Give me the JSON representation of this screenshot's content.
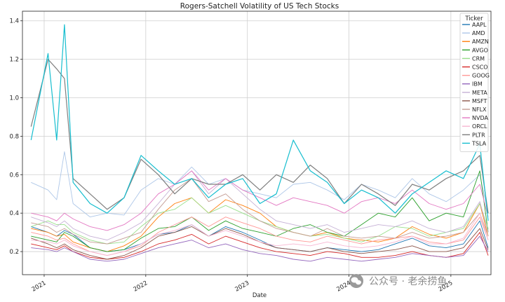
{
  "watermark": {
    "text": "公众号 · 老余捞鱼",
    "icon": "wechat-icon"
  },
  "chart_data": {
    "type": "line",
    "title": "Rogers-Satchell Volatility of US Tech Stocks",
    "xlabel": "Date",
    "ylabel": "",
    "x_range": [
      "2020-10-15",
      "2025-05-25"
    ],
    "ylim": [
      0.08,
      1.45
    ],
    "yticks": [
      0.2,
      0.4,
      0.6,
      0.8,
      1.0,
      1.2,
      1.4
    ],
    "ytick_labels": [
      "0.2",
      "0.4",
      "0.6",
      "0.8",
      "1.0",
      "1.2",
      "1.4"
    ],
    "xticks": [
      "2021-01-01",
      "2022-01-01",
      "2023-01-01",
      "2024-01-01",
      "2025-01-01"
    ],
    "xtick_labels": [
      "2021",
      "2022",
      "2023",
      "2024",
      "2025"
    ],
    "grid": true,
    "legend": {
      "title": "Ticker",
      "placement": "top-right"
    },
    "x": [
      "2020-11",
      "2021-01",
      "2021-02",
      "2021-03",
      "2021-04",
      "2021-06",
      "2021-08",
      "2021-10",
      "2021-12",
      "2022-02",
      "2022-04",
      "2022-06",
      "2022-08",
      "2022-10",
      "2022-12",
      "2023-02",
      "2023-04",
      "2023-06",
      "2023-08",
      "2023-10",
      "2023-12",
      "2024-02",
      "2024-04",
      "2024-06",
      "2024-08",
      "2024-10",
      "2024-12",
      "2025-02",
      "2025-04",
      "2025-05"
    ],
    "series": [
      {
        "name": "AAPL",
        "color": "#1f77b4",
        "values": [
          0.33,
          0.3,
          0.28,
          0.31,
          0.29,
          0.22,
          0.2,
          0.21,
          0.24,
          0.29,
          0.3,
          0.34,
          0.28,
          0.33,
          0.3,
          0.26,
          0.22,
          0.21,
          0.2,
          0.22,
          0.21,
          0.2,
          0.21,
          0.24,
          0.27,
          0.23,
          0.22,
          0.24,
          0.36,
          0.22
        ]
      },
      {
        "name": "AMD",
        "color": "#aec7e8",
        "values": [
          0.56,
          0.52,
          0.47,
          0.72,
          0.45,
          0.38,
          0.4,
          0.39,
          0.52,
          0.58,
          0.55,
          0.64,
          0.55,
          0.58,
          0.52,
          0.5,
          0.48,
          0.55,
          0.56,
          0.52,
          0.47,
          0.55,
          0.52,
          0.48,
          0.58,
          0.5,
          0.46,
          0.52,
          0.6,
          0.4
        ]
      },
      {
        "name": "AMZN",
        "color": "#ff7f0e",
        "values": [
          0.32,
          0.3,
          0.28,
          0.29,
          0.25,
          0.22,
          0.2,
          0.23,
          0.28,
          0.38,
          0.45,
          0.48,
          0.4,
          0.47,
          0.44,
          0.4,
          0.33,
          0.3,
          0.28,
          0.3,
          0.27,
          0.26,
          0.25,
          0.27,
          0.33,
          0.29,
          0.27,
          0.3,
          0.45,
          0.28
        ]
      },
      {
        "name": "AVGO",
        "color": "#2ca02c",
        "values": [
          0.28,
          0.26,
          0.25,
          0.3,
          0.28,
          0.22,
          0.2,
          0.21,
          0.27,
          0.32,
          0.33,
          0.38,
          0.31,
          0.36,
          0.32,
          0.3,
          0.28,
          0.32,
          0.34,
          0.3,
          0.28,
          0.34,
          0.4,
          0.38,
          0.48,
          0.36,
          0.4,
          0.38,
          0.62,
          0.3
        ]
      },
      {
        "name": "CRM",
        "color": "#98df8a",
        "values": [
          0.33,
          0.36,
          0.34,
          0.34,
          0.3,
          0.26,
          0.24,
          0.25,
          0.33,
          0.4,
          0.42,
          0.48,
          0.4,
          0.44,
          0.4,
          0.36,
          0.33,
          0.3,
          0.28,
          0.29,
          0.27,
          0.25,
          0.28,
          0.33,
          0.32,
          0.28,
          0.3,
          0.32,
          0.45,
          0.32
        ]
      },
      {
        "name": "CSCO",
        "color": "#d62728",
        "values": [
          0.24,
          0.22,
          0.21,
          0.23,
          0.2,
          0.17,
          0.16,
          0.17,
          0.2,
          0.24,
          0.26,
          0.29,
          0.24,
          0.28,
          0.25,
          0.22,
          0.2,
          0.19,
          0.18,
          0.2,
          0.19,
          0.17,
          0.17,
          0.18,
          0.2,
          0.18,
          0.17,
          0.19,
          0.3,
          0.18
        ]
      },
      {
        "name": "GOOG",
        "color": "#ff9896",
        "values": [
          0.3,
          0.28,
          0.26,
          0.27,
          0.24,
          0.2,
          0.18,
          0.2,
          0.23,
          0.3,
          0.34,
          0.38,
          0.33,
          0.38,
          0.35,
          0.32,
          0.28,
          0.26,
          0.25,
          0.28,
          0.26,
          0.24,
          0.26,
          0.27,
          0.28,
          0.25,
          0.24,
          0.26,
          0.38,
          0.26
        ]
      },
      {
        "name": "IBM",
        "color": "#9467bd",
        "values": [
          0.22,
          0.21,
          0.2,
          0.22,
          0.2,
          0.16,
          0.15,
          0.16,
          0.19,
          0.22,
          0.24,
          0.26,
          0.22,
          0.24,
          0.21,
          0.19,
          0.18,
          0.16,
          0.15,
          0.17,
          0.16,
          0.15,
          0.16,
          0.17,
          0.19,
          0.18,
          0.17,
          0.18,
          0.28,
          0.2
        ]
      },
      {
        "name": "META",
        "color": "#c5b0d5",
        "values": [
          0.38,
          0.35,
          0.33,
          0.36,
          0.32,
          0.28,
          0.26,
          0.3,
          0.35,
          0.45,
          0.55,
          0.62,
          0.5,
          0.58,
          0.5,
          0.42,
          0.36,
          0.34,
          0.32,
          0.34,
          0.3,
          0.32,
          0.34,
          0.33,
          0.36,
          0.32,
          0.3,
          0.33,
          0.46,
          0.3
        ]
      },
      {
        "name": "MSFT",
        "color": "#8c564b",
        "values": [
          0.27,
          0.24,
          0.22,
          0.24,
          0.21,
          0.18,
          0.16,
          0.18,
          0.22,
          0.28,
          0.3,
          0.33,
          0.28,
          0.32,
          0.29,
          0.25,
          0.22,
          0.21,
          0.2,
          0.22,
          0.2,
          0.19,
          0.2,
          0.21,
          0.23,
          0.2,
          0.2,
          0.22,
          0.32,
          0.21
        ]
      },
      {
        "name": "NFLX",
        "color": "#c49c94",
        "values": [
          0.35,
          0.33,
          0.3,
          0.32,
          0.29,
          0.25,
          0.24,
          0.27,
          0.3,
          0.42,
          0.52,
          0.58,
          0.46,
          0.5,
          0.42,
          0.36,
          0.32,
          0.3,
          0.28,
          0.32,
          0.28,
          0.27,
          0.28,
          0.27,
          0.3,
          0.27,
          0.28,
          0.3,
          0.4,
          0.28
        ]
      },
      {
        "name": "NVDA",
        "color": "#e377c2",
        "values": [
          0.4,
          0.38,
          0.36,
          0.4,
          0.37,
          0.33,
          0.31,
          0.34,
          0.4,
          0.5,
          0.55,
          0.62,
          0.52,
          0.58,
          0.52,
          0.48,
          0.44,
          0.48,
          0.46,
          0.44,
          0.4,
          0.46,
          0.48,
          0.45,
          0.52,
          0.45,
          0.42,
          0.45,
          0.55,
          0.38
        ]
      },
      {
        "name": "ORCL",
        "color": "#f7b6d2",
        "values": [
          0.26,
          0.25,
          0.24,
          0.26,
          0.23,
          0.2,
          0.18,
          0.2,
          0.24,
          0.29,
          0.31,
          0.34,
          0.28,
          0.31,
          0.28,
          0.25,
          0.23,
          0.24,
          0.23,
          0.25,
          0.23,
          0.22,
          0.23,
          0.25,
          0.28,
          0.24,
          0.24,
          0.27,
          0.4,
          0.26
        ]
      },
      {
        "name": "PLTR",
        "color": "#7f7f7f",
        "values": [
          0.85,
          1.2,
          1.15,
          1.1,
          0.58,
          0.5,
          0.42,
          0.48,
          0.68,
          0.6,
          0.5,
          0.58,
          0.55,
          0.55,
          0.6,
          0.52,
          0.6,
          0.56,
          0.65,
          0.58,
          0.45,
          0.55,
          0.5,
          0.44,
          0.55,
          0.52,
          0.58,
          0.62,
          0.7,
          0.4
        ]
      },
      {
        "name": "TSLA",
        "color": "#17becf",
        "values": [
          0.78,
          1.23,
          0.78,
          1.38,
          0.56,
          0.45,
          0.4,
          0.48,
          0.7,
          0.62,
          0.55,
          0.58,
          0.48,
          0.55,
          0.58,
          0.45,
          0.5,
          0.78,
          0.62,
          0.56,
          0.45,
          0.52,
          0.48,
          0.4,
          0.5,
          0.56,
          0.62,
          0.58,
          0.76,
          0.36
        ]
      }
    ]
  }
}
